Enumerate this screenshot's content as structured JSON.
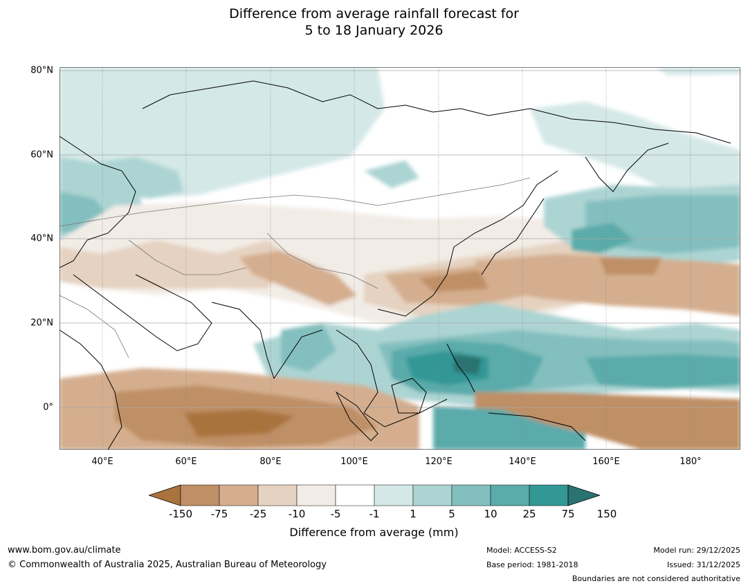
{
  "title": {
    "line1": "Difference from average rainfall forecast for",
    "line2": "5 to 18 January 2026"
  },
  "axes": {
    "lat_labels": [
      "80°N",
      "60°N",
      "40°N",
      "20°N",
      "0°"
    ],
    "lon_labels": [
      "40°E",
      "60°E",
      "80°E",
      "100°E",
      "120°E",
      "140°E",
      "160°E",
      "180°"
    ],
    "lon_range": [
      30,
      192
    ],
    "lat_range": [
      -10,
      81
    ]
  },
  "colorbar": {
    "title": "Difference from average (mm)",
    "tick_labels": [
      "-150",
      "-75",
      "-25",
      "-10",
      "-5",
      "-1",
      "1",
      "5",
      "10",
      "25",
      "75",
      "150"
    ],
    "colors": [
      "#a9733d",
      "#bf8f65",
      "#d4ae8e",
      "#e5d2c0",
      "#f2ece6",
      "#ffffff",
      "#d4e8e7",
      "#acd4d3",
      "#83bfbe",
      "#5aabaa",
      "#339795",
      "#2a7370"
    ]
  },
  "footer": {
    "url": "www.bom.gov.au/climate",
    "copyright": "© Commonwealth of Australia 2025, Australian Bureau of Meteorology",
    "model": "Model: ACCESS-S2",
    "base_period": "Base period: 1981-2018",
    "model_run": "Model run: 29/12/2025",
    "issued": "Issued: 31/12/2025",
    "boundaries_note": "Boundaries are not considered authoritative"
  }
}
